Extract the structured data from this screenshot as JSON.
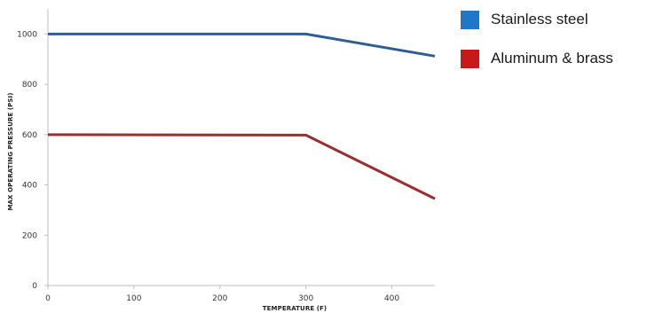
{
  "chart_data": {
    "type": "line",
    "x": [
      0,
      300,
      450
    ],
    "series": [
      {
        "name": "Stainless steel",
        "color": "#2f5d95",
        "legend_color": "#1f77c9",
        "values": [
          1000,
          1000,
          912
        ]
      },
      {
        "name": "Aluminum & brass",
        "color": "#9b2f2f",
        "legend_color": "#c81818",
        "values": [
          600,
          598,
          345
        ]
      }
    ],
    "xlabel": "TEMPERATURE (F)",
    "ylabel": "MAX OPERATING PRESSURE (PSI)",
    "xlim": [
      0,
      450
    ],
    "ylim": [
      0,
      1100
    ],
    "xticks": [
      0,
      100,
      200,
      300,
      400
    ],
    "yticks": [
      0,
      200,
      400,
      600,
      800,
      1000
    ],
    "grid": false,
    "legend_position": "top-right"
  }
}
